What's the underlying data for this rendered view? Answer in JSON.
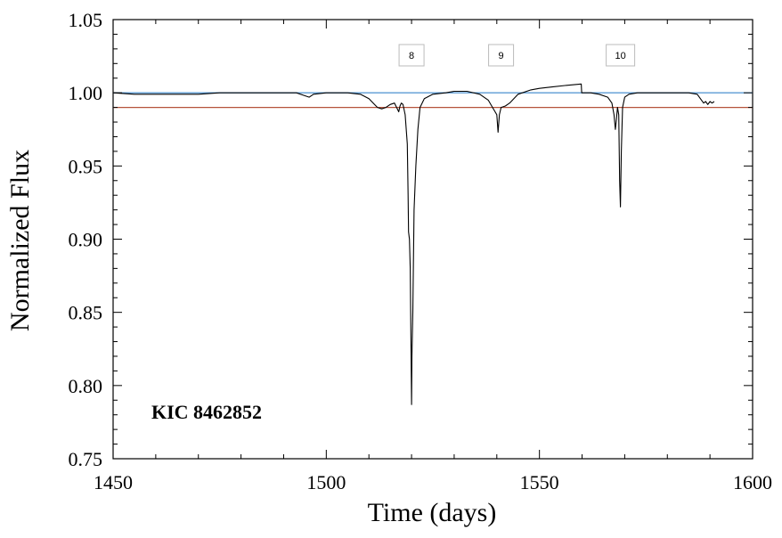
{
  "chart_data": {
    "type": "line",
    "title": "",
    "xlabel": "Time (days)",
    "ylabel": "Normalized Flux",
    "xlim": [
      1450,
      1600
    ],
    "ylim": [
      0.75,
      1.05
    ],
    "xticks": [
      "1450",
      "1500",
      "1550",
      "1600"
    ],
    "yticks": [
      "0.75",
      "0.80",
      "0.85",
      "0.90",
      "0.95",
      "1.00",
      "1.05"
    ],
    "grid": false,
    "label": "KIC 8462852",
    "annotations": [
      {
        "text": "8",
        "x": 1520
      },
      {
        "text": "9",
        "x": 1541
      },
      {
        "text": "10",
        "x": 1569
      }
    ],
    "reference_lines": [
      {
        "y": 1.0,
        "color": "#5b9bd5"
      },
      {
        "y": 0.99,
        "color": "#b5523b"
      }
    ],
    "series": [
      {
        "color": "#000000",
        "x": [
          1450,
          1455,
          1460,
          1465,
          1470,
          1475,
          1480,
          1485,
          1490,
          1493,
          1495,
          1496,
          1497,
          1500,
          1505,
          1508,
          1510,
          1511,
          1512,
          1513,
          1514,
          1515,
          1516,
          1516.5,
          1517,
          1517.3,
          1517.6,
          1518,
          1518.5,
          1519,
          1519.2,
          1519.3,
          1519.5,
          1519.7,
          1520,
          1520.1,
          1520.3,
          1520.6,
          1521,
          1521.5,
          1522,
          1523,
          1525,
          1528,
          1530,
          1533,
          1536,
          1538,
          1539,
          1540,
          1540.3,
          1540.6,
          1541,
          1542,
          1543,
          1545,
          1548,
          1550,
          1553,
          1556,
          1559.8,
          1559.9,
          1560.2,
          1562,
          1564,
          1566,
          1567,
          1567.5,
          1567.8,
          1568,
          1568.3,
          1568.6,
          1568.8,
          1569,
          1569.2,
          1569.5,
          1570,
          1571,
          1573,
          1576,
          1580,
          1585,
          1587,
          1588,
          1588.5,
          1589,
          1589.5,
          1590,
          1590.5,
          1591
        ],
        "y": [
          1.0,
          0.999,
          0.999,
          0.999,
          0.999,
          1.0,
          1.0,
          1.0,
          1.0,
          1.0,
          0.998,
          0.997,
          0.999,
          1.0,
          1.0,
          0.999,
          0.996,
          0.993,
          0.99,
          0.989,
          0.99,
          0.992,
          0.993,
          0.99,
          0.987,
          0.991,
          0.993,
          0.992,
          0.985,
          0.965,
          0.93,
          0.905,
          0.9,
          0.88,
          0.787,
          0.82,
          0.85,
          0.92,
          0.95,
          0.975,
          0.99,
          0.996,
          0.999,
          1.0,
          1.001,
          1.001,
          0.999,
          0.995,
          0.99,
          0.985,
          0.973,
          0.985,
          0.99,
          0.991,
          0.993,
          0.999,
          1.002,
          1.003,
          1.004,
          1.005,
          1.006,
          1.0,
          1.0,
          1.0,
          0.999,
          0.997,
          0.993,
          0.985,
          0.975,
          0.98,
          0.99,
          0.985,
          0.94,
          0.922,
          0.96,
          0.99,
          0.997,
          0.999,
          1.0,
          1.0,
          1.0,
          1.0,
          0.999,
          0.995,
          0.993,
          0.994,
          0.992,
          0.994,
          0.993,
          0.994
        ]
      }
    ]
  }
}
